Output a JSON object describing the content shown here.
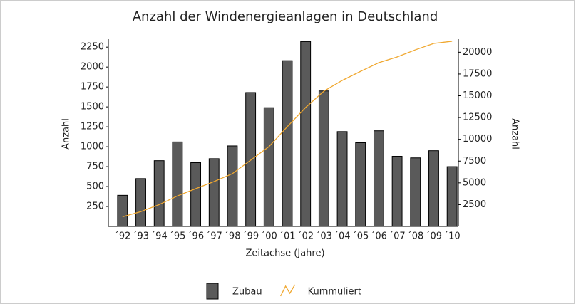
{
  "chart_data": {
    "type": "bar",
    "title": "Anzahl der Windenergieanlagen in Deutschland",
    "x_label": "Zeitachse (Jahre)",
    "y_label": "Anzahl",
    "y2_label": "Anzahl",
    "categories": [
      "´92",
      "´93",
      "´94",
      "´95",
      "´96",
      "´97",
      "´98",
      "´99",
      "´00",
      "´01",
      "´02",
      "´03",
      "´04",
      "´05",
      "´06",
      "´07",
      "´08",
      "´09",
      "´10"
    ],
    "series": [
      {
        "name": "Zubau",
        "type": "bar",
        "color": "#5a5a5a",
        "values": [
          390,
          600,
          825,
          1060,
          800,
          850,
          1010,
          1680,
          1490,
          2080,
          2320,
          1700,
          1190,
          1050,
          1200,
          880,
          860,
          950,
          750
        ]
      },
      {
        "name": "Kummuliert",
        "type": "line",
        "axis": "y2",
        "color": "#f0a830",
        "values": [
          1100,
          1700,
          2500,
          3500,
          4330,
          5150,
          6050,
          7600,
          9160,
          11450,
          13650,
          15530,
          16760,
          17800,
          18800,
          19460,
          20280,
          21010,
          21260
        ]
      }
    ],
    "ylim": [
      0,
      2350
    ],
    "yticks": [
      250,
      500,
      750,
      1000,
      1250,
      1500,
      1750,
      2000,
      2250
    ],
    "y2lim": [
      0,
      21500
    ],
    "y2ticks": [
      2500,
      5000,
      7500,
      10000,
      12500,
      15000,
      17500,
      20000
    ],
    "legend": "bottom"
  }
}
